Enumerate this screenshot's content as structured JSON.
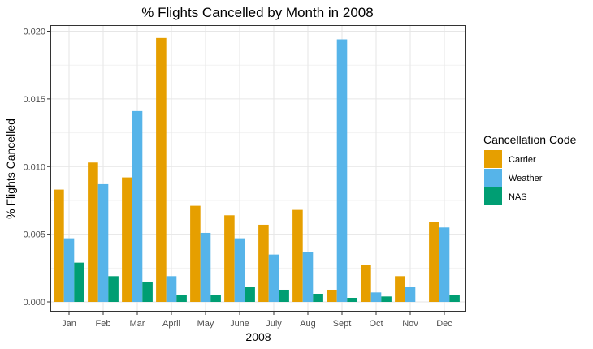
{
  "colors": {
    "Carrier": "#E69F00",
    "Weather": "#56B4E9",
    "NAS": "#009E73"
  },
  "chart_data": {
    "type": "bar",
    "title": "% Flights Cancelled by Month in 2008",
    "xlabel": "2008",
    "ylabel": "% Flights Cancelled",
    "ylim": [
      0,
      0.0205
    ],
    "yticks": [
      "0.000",
      "0.005",
      "0.010",
      "0.015",
      "0.020"
    ],
    "ytick_values": [
      0.0,
      0.005,
      0.01,
      0.015,
      0.02
    ],
    "grid": true,
    "legend_title": "Cancellation Code",
    "legend_position": "right",
    "categories": [
      "Jan",
      "Feb",
      "Mar",
      "April",
      "May",
      "June",
      "July",
      "Aug",
      "Sept",
      "Oct",
      "Nov",
      "Dec"
    ],
    "series": [
      {
        "name": "Carrier",
        "values": [
          0.0083,
          0.0103,
          0.0092,
          0.0195,
          0.0071,
          0.0064,
          0.0057,
          0.0068,
          0.0009,
          0.0027,
          0.0019,
          0.0059
        ]
      },
      {
        "name": "Weather",
        "values": [
          0.0047,
          0.0087,
          0.0141,
          0.0019,
          0.0051,
          0.0047,
          0.0035,
          0.0037,
          0.0194,
          0.0007,
          0.0011,
          0.0055
        ]
      },
      {
        "name": "NAS",
        "values": [
          0.0029,
          0.0019,
          0.0015,
          0.0005,
          0.0005,
          0.0011,
          0.0009,
          0.0006,
          0.0003,
          0.0004,
          null,
          0.0005
        ]
      }
    ]
  }
}
